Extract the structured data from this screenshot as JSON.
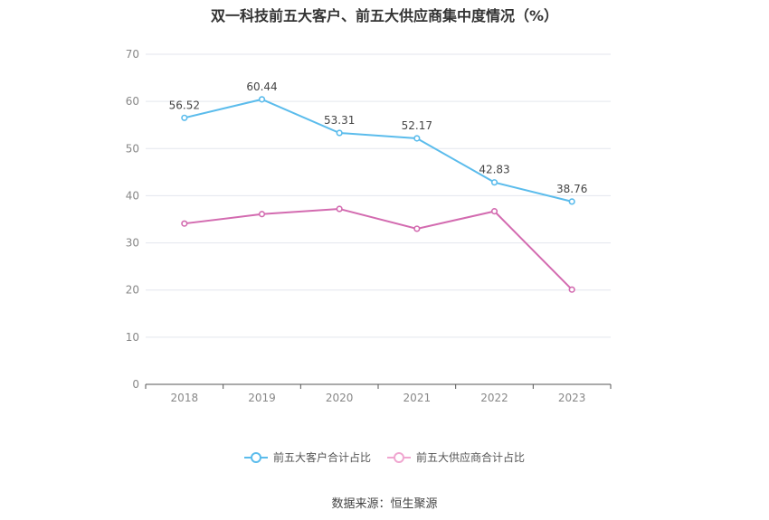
{
  "chart_data": {
    "type": "line",
    "title": "双一科技前五大客户、前五大供应商集中度情况（%）",
    "categories": [
      "2018",
      "2019",
      "2020",
      "2021",
      "2022",
      "2023"
    ],
    "ylim": [
      0,
      70
    ],
    "yticks": [
      0,
      10,
      20,
      30,
      40,
      50,
      60,
      70
    ],
    "grid": true,
    "legend_position": "bottom",
    "series": [
      {
        "name": "前五大客户合计占比",
        "color": "#5bbcec",
        "values": [
          56.52,
          60.44,
          53.31,
          52.17,
          42.83,
          38.76
        ],
        "labels": [
          "56.52",
          "60.44",
          "53.31",
          "52.17",
          "42.83",
          "38.76"
        ]
      },
      {
        "name": "前五大供应商合计占比",
        "color": "#d36bb0",
        "values": [
          34.1,
          36.1,
          37.2,
          33.0,
          36.7,
          20.1
        ]
      }
    ]
  },
  "source": "数据来源：恒生聚源"
}
